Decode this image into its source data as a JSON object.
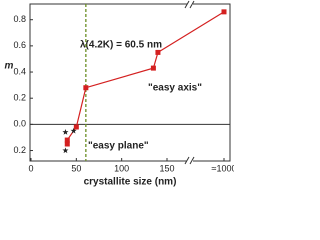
{
  "chart_data": {
    "type": "line",
    "xlabel": "crystallite size (nm)",
    "ylabel": "m",
    "annotations": [
      "λ(4.2K) = 60.5 nm",
      "\"easy axis\"",
      "\"easy plane\""
    ],
    "vline": 60.5,
    "vline_color": "#6b8e23",
    "xlim": [
      0,
      1000
    ],
    "xticks": [
      0,
      50,
      100,
      150,
      {
        "value": 1000,
        "label": "≈1000"
      }
    ],
    "ylim": [
      -0.28,
      0.92
    ],
    "yticks": [
      {
        "value": -0.2,
        "label": "0.2"
      },
      {
        "value": 0,
        "label": "0.0"
      },
      0.2,
      0.4,
      0.6,
      0.8
    ],
    "series": [
      {
        "color": "#d42020",
        "marker": "square",
        "x": [
          40,
          40,
          50,
          60.5,
          135,
          140,
          1000
        ],
        "values": [
          -0.15,
          -0.12,
          -0.02,
          0.28,
          0.43,
          0.55,
          0.86
        ]
      },
      {
        "color": "#222222",
        "marker": "star",
        "x": [
          38,
          38,
          47
        ],
        "values": [
          -0.06,
          -0.2,
          -0.05
        ]
      }
    ]
  }
}
